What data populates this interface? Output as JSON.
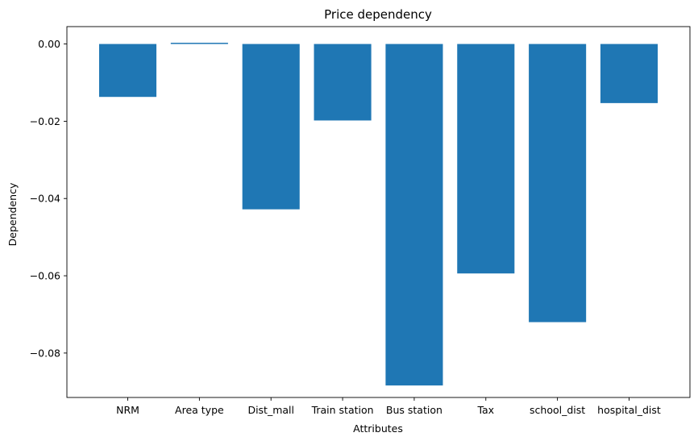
{
  "chart_data": {
    "type": "bar",
    "title": "Price dependency",
    "xlabel": "Attributes",
    "ylabel": "Dependency",
    "categories": [
      "NRM",
      "Area type",
      "Dist_mall",
      "Train station",
      "Bus station",
      "Tax",
      "school_dist",
      "hospital_dist"
    ],
    "values": [
      -0.0137,
      0.0003,
      -0.0428,
      -0.0198,
      -0.0884,
      -0.0594,
      -0.072,
      -0.0153
    ],
    "ylim": [
      -0.0915,
      0.0045
    ],
    "yticks": [
      0.0,
      -0.02,
      -0.04,
      -0.06,
      -0.08
    ],
    "ytick_labels": [
      "0.00",
      "−0.02",
      "−0.04",
      "−0.06",
      "−0.08"
    ],
    "grid": false,
    "bar_color": "#1f77b4"
  }
}
